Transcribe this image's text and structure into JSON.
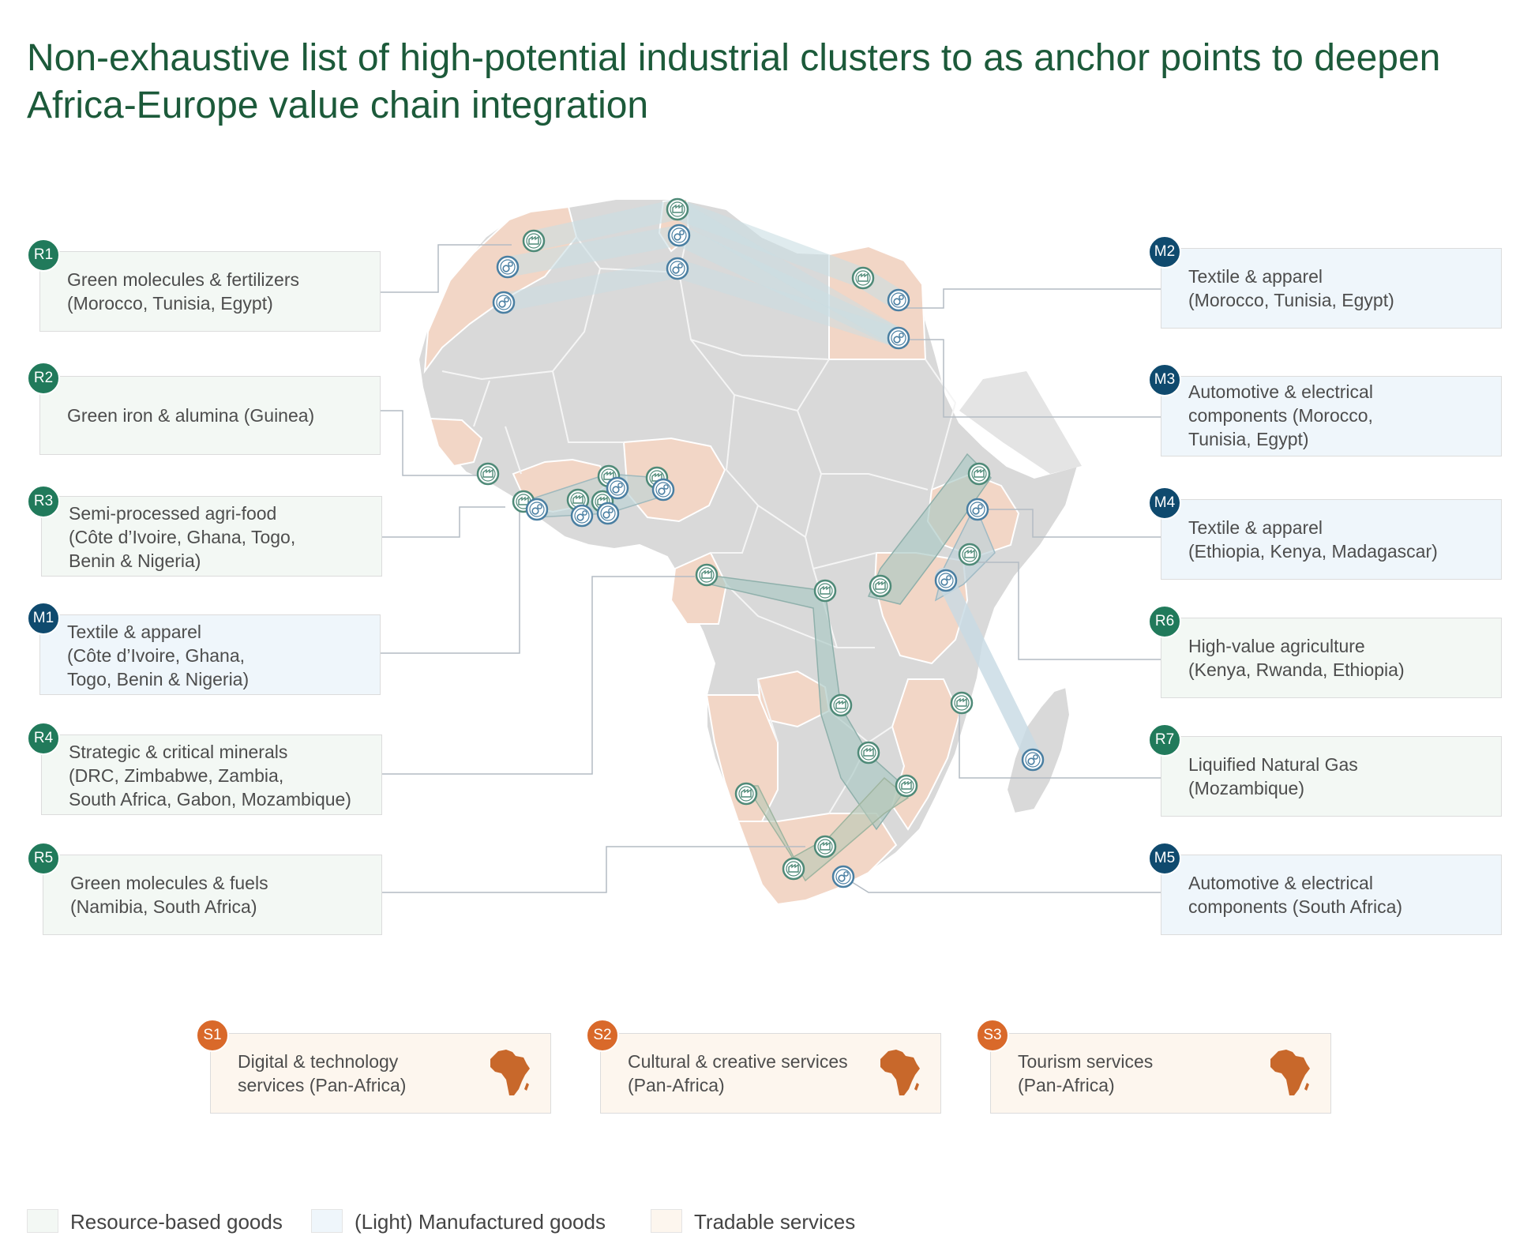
{
  "title": "Non-exhaustive list of high-potential industrial clusters to as anchor points to deepen Africa-Europe value chain integration",
  "colors": {
    "title": "#1c5a3a",
    "resource_badge": "#217a5b",
    "manufactured_badge": "#0f4a6e",
    "services_badge": "#d9692a",
    "resource_fill": "#f3f8f4",
    "manufactured_fill": "#eff6fb",
    "services_fill": "#fdf6ee",
    "land_gray": "#d9d9d9",
    "land_highlight": "#f2d6c6",
    "africa_icon": "#c8682b"
  },
  "clusters": {
    "r1": {
      "badge": "R1",
      "lines": [
        "Green molecules & fertilizers",
        "(Morocco, Tunisia, Egypt)"
      ]
    },
    "r2": {
      "badge": "R2",
      "lines": [
        "Green iron & alumina (Guinea)"
      ]
    },
    "r3": {
      "badge": "R3",
      "lines": [
        "Semi-processed agri-food",
        "(Côte d’Ivoire, Ghana, Togo,",
        "Benin & Nigeria)"
      ]
    },
    "m1": {
      "badge": "M1",
      "lines": [
        "Textile & apparel",
        "(Côte d’Ivoire, Ghana,",
        "Togo, Benin & Nigeria)"
      ]
    },
    "r4": {
      "badge": "R4",
      "lines": [
        "Strategic & critical minerals",
        "(DRC, Zimbabwe, Zambia,",
        "South Africa, Gabon, Mozambique)"
      ]
    },
    "r5": {
      "badge": "R5",
      "lines": [
        "Green molecules & fuels",
        "(Namibia, South Africa)"
      ]
    },
    "m2": {
      "badge": "M2",
      "lines": [
        "Textile & apparel",
        "(Morocco, Tunisia, Egypt)"
      ]
    },
    "m3": {
      "badge": "M3",
      "lines": [
        "Automotive & electrical",
        "components (Morocco,",
        "Tunisia, Egypt)"
      ]
    },
    "m4": {
      "badge": "M4",
      "lines": [
        "Textile & apparel",
        "(Ethiopia, Kenya, Madagascar)"
      ]
    },
    "r6": {
      "badge": "R6",
      "lines": [
        "High-value agriculture",
        "(Kenya, Rwanda, Ethiopia)"
      ]
    },
    "r7": {
      "badge": "R7",
      "lines": [
        "Liquified Natural Gas",
        "(Mozambique)"
      ]
    },
    "m5": {
      "badge": "M5",
      "lines": [
        "Automotive & electrical",
        "components (South Africa)"
      ]
    }
  },
  "services": {
    "s1": {
      "badge": "S1",
      "lines": [
        "Digital & technology",
        "services (Pan-Africa)"
      ],
      "icon": "africa-icon"
    },
    "s2": {
      "badge": "S2",
      "lines": [
        "Cultural & creative services",
        "(Pan-Africa)"
      ],
      "icon": "africa-icon"
    },
    "s3": {
      "badge": "S3",
      "lines": [
        "Tourism services",
        "(Pan-Africa)"
      ],
      "icon": "africa-icon"
    }
  },
  "legend": {
    "resource": "Resource-based goods",
    "manufactured": "(Light) Manufactured goods",
    "services": "Tradable services"
  },
  "map_icons": {
    "resource_marker": "factory-marker-icon",
    "manufactured_marker": "gear-marker-icon"
  }
}
